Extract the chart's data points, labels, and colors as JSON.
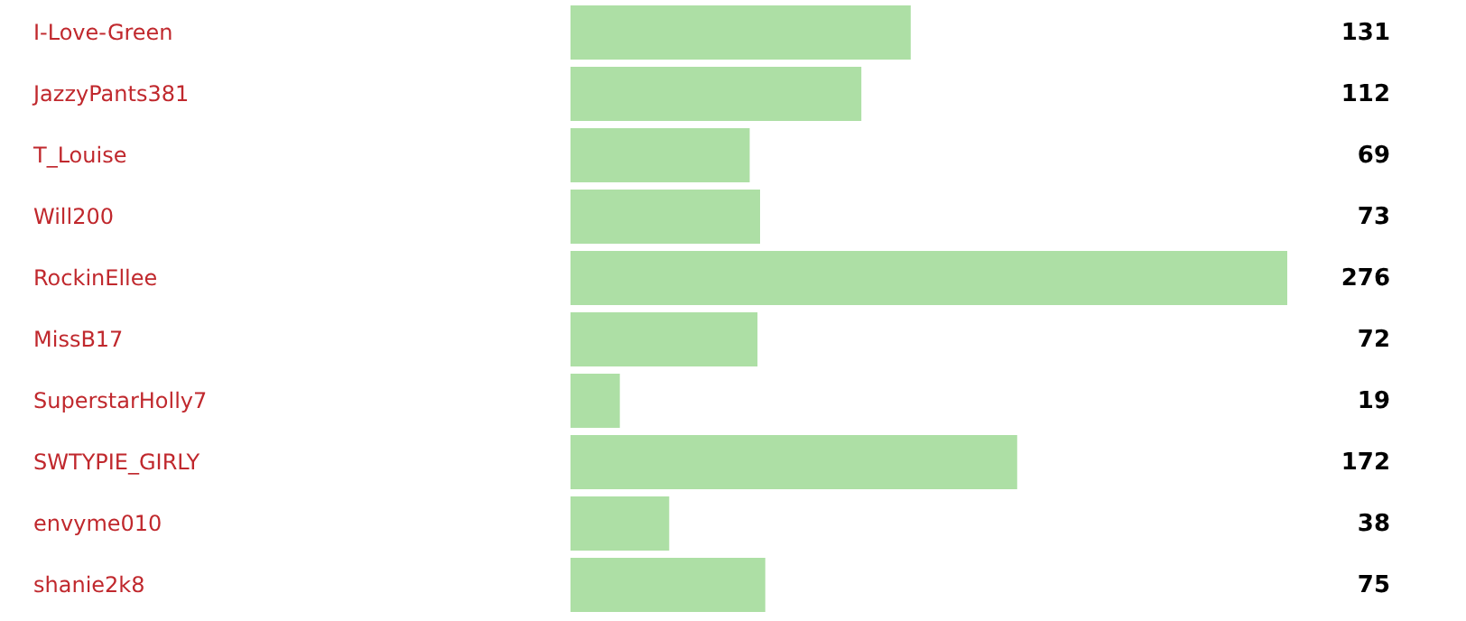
{
  "chart_data": {
    "type": "bar",
    "orientation": "horizontal",
    "categories": [
      "I-Love-Green",
      "JazzyPants381",
      "T_Louise",
      "Will200",
      "RockinEllee",
      "MissB17",
      "SuperstarHolly7",
      "SWTYPIE_GIRLY",
      "envyme010",
      "shanie2k8"
    ],
    "values": [
      131,
      112,
      69,
      73,
      276,
      72,
      19,
      172,
      38,
      75
    ],
    "color": "#addfa5",
    "data_labels": true
  }
}
